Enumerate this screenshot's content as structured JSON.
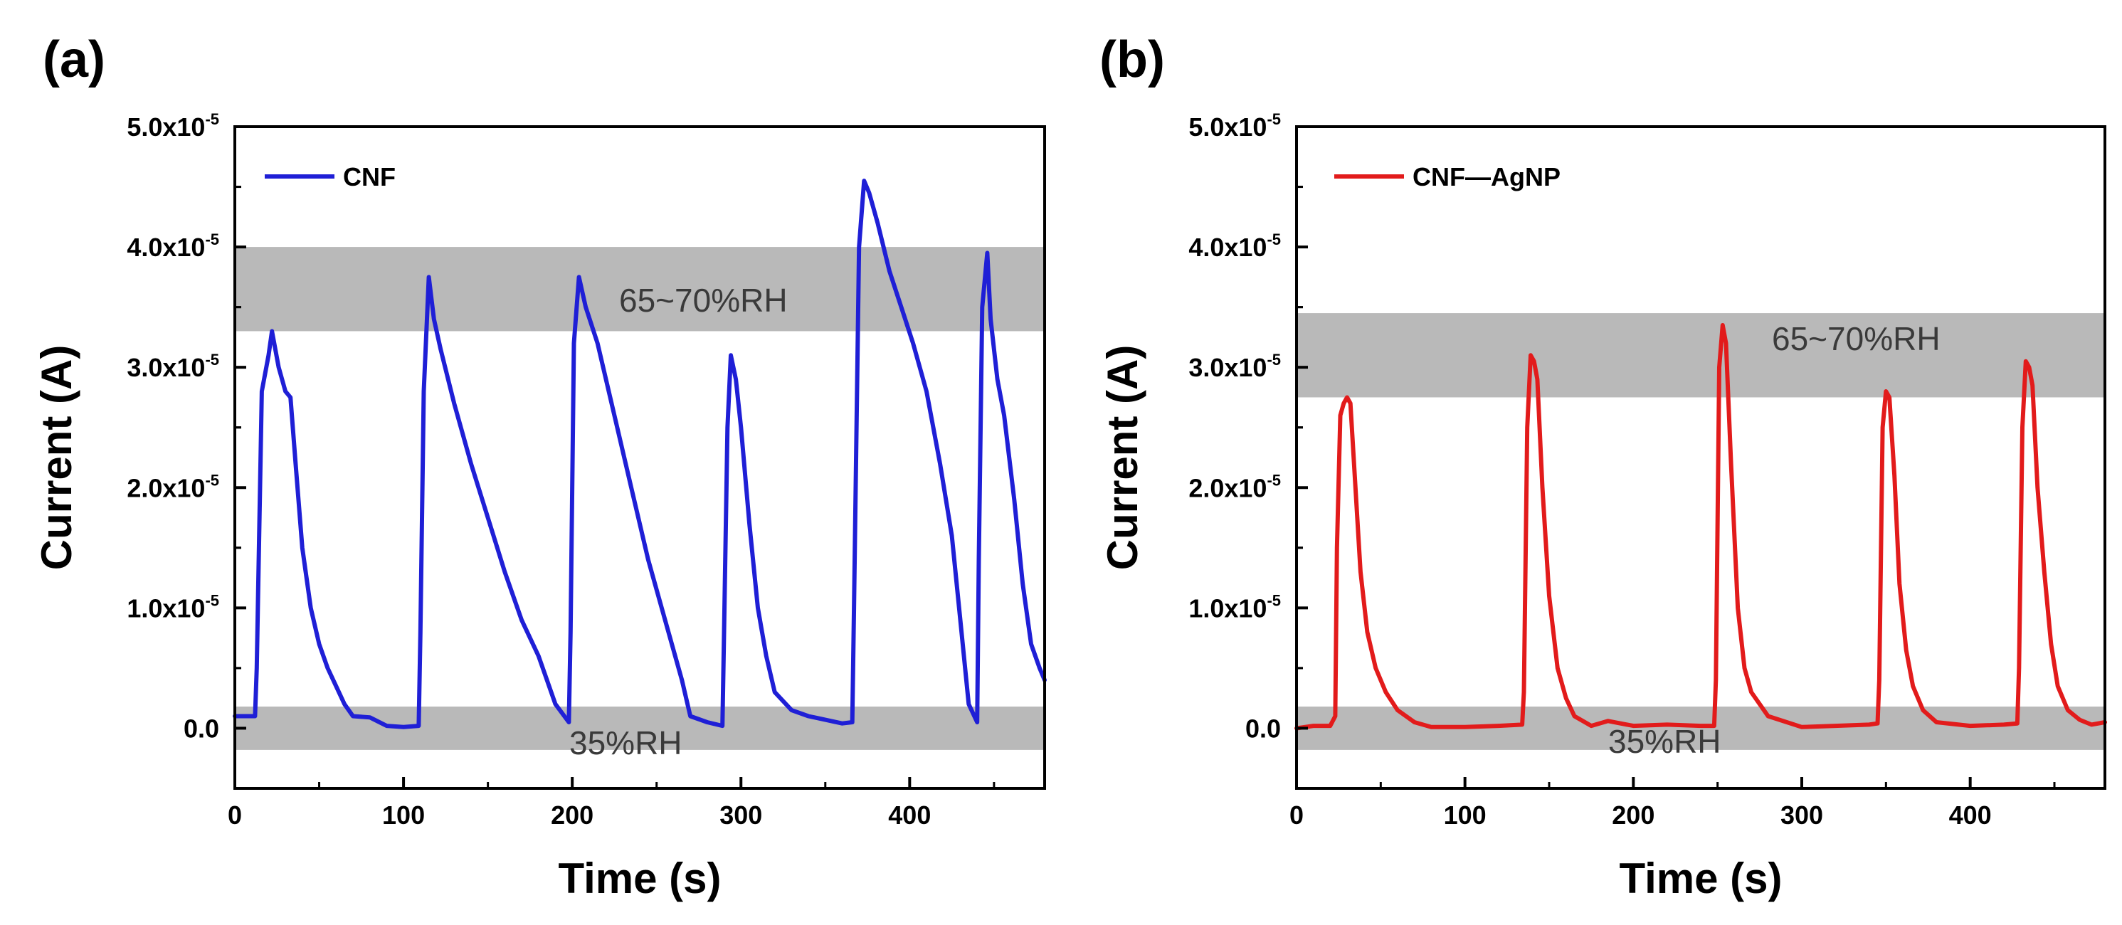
{
  "chart_data": [
    {
      "panel_label": "(a)",
      "type": "line",
      "xlabel": "Time (s)",
      "ylabel": "Current (A)",
      "xlim": [
        0,
        480
      ],
      "ylim": [
        -5e-06,
        5e-05
      ],
      "xticks": [
        0,
        100,
        200,
        300,
        400
      ],
      "xtick_labels": [
        "0",
        "100",
        "200",
        "300",
        "400"
      ],
      "yticks": [
        0,
        1e-05,
        2e-05,
        3e-05,
        4e-05,
        5e-05
      ],
      "ytick_labels": [
        {
          "base": "0.0",
          "exp": ""
        },
        {
          "base": "1.0x10",
          "exp": "-5"
        },
        {
          "base": "2.0x10",
          "exp": "-5"
        },
        {
          "base": "3.0x10",
          "exp": "-5"
        },
        {
          "base": "4.0x10",
          "exp": "-5"
        },
        {
          "base": "5.0x10",
          "exp": "-5"
        }
      ],
      "bands": [
        {
          "label": "65~70%RH",
          "y0": 3.3e-05,
          "y1": 4e-05
        },
        {
          "label": "35%RH",
          "y0": -1.8e-06,
          "y1": 1.8e-06
        }
      ],
      "legend": "top-left",
      "series": [
        {
          "name": "CNF",
          "color": "#1f1fd6",
          "x": [
            0,
            12,
            13,
            16,
            20,
            22,
            26,
            30,
            33,
            36,
            40,
            45,
            50,
            55,
            60,
            65,
            70,
            80,
            90,
            100,
            109,
            110,
            112,
            115,
            118,
            122,
            130,
            140,
            150,
            160,
            170,
            180,
            190,
            198,
            199,
            201,
            204,
            208,
            215,
            225,
            235,
            245,
            255,
            265,
            270,
            280,
            289,
            290,
            292,
            294,
            297,
            300,
            305,
            310,
            315,
            320,
            330,
            340,
            350,
            360,
            366,
            367,
            370,
            373,
            376,
            381,
            388,
            395,
            402,
            410,
            418,
            425,
            430,
            435,
            440,
            441,
            443,
            446,
            448,
            452,
            456,
            462,
            467,
            472,
            477,
            480
          ],
          "values": [
            1e-06,
            1e-06,
            5e-06,
            2.8e-05,
            3.1e-05,
            3.3e-05,
            3e-05,
            2.8e-05,
            2.75e-05,
            2.2e-05,
            1.5e-05,
            1e-05,
            7e-06,
            5e-06,
            3.5e-06,
            2e-06,
            1e-06,
            9e-07,
            2e-07,
            1e-07,
            2e-07,
            8e-06,
            2.8e-05,
            3.75e-05,
            3.4e-05,
            3.15e-05,
            2.7e-05,
            2.2e-05,
            1.75e-05,
            1.3e-05,
            9e-06,
            6e-06,
            2e-06,
            5e-07,
            8e-06,
            3.2e-05,
            3.75e-05,
            3.5e-05,
            3.2e-05,
            2.6e-05,
            2e-05,
            1.4e-05,
            9e-06,
            4e-06,
            1e-06,
            5e-07,
            2e-07,
            8e-06,
            2.5e-05,
            3.1e-05,
            2.9e-05,
            2.5e-05,
            1.7e-05,
            1e-05,
            6e-06,
            3e-06,
            1.5e-06,
            1e-06,
            7e-07,
            4e-07,
            5e-07,
            1e-05,
            4e-05,
            4.55e-05,
            4.45e-05,
            4.2e-05,
            3.8e-05,
            3.5e-05,
            3.2e-05,
            2.8e-05,
            2.2e-05,
            1.6e-05,
            9e-06,
            2e-06,
            5e-07,
            1.4e-05,
            3.5e-05,
            3.95e-05,
            3.4e-05,
            2.9e-05,
            2.6e-05,
            1.9e-05,
            1.2e-05,
            7e-06,
            5e-06,
            4e-06
          ]
        }
      ]
    },
    {
      "panel_label": "(b)",
      "type": "line",
      "xlabel": "Time (s)",
      "ylabel": "Current (A)",
      "xlim": [
        0,
        480
      ],
      "ylim": [
        -5e-06,
        5e-05
      ],
      "xticks": [
        0,
        100,
        200,
        300,
        400
      ],
      "xtick_labels": [
        "0",
        "100",
        "200",
        "300",
        "400"
      ],
      "yticks": [
        0,
        1e-05,
        2e-05,
        3e-05,
        4e-05,
        5e-05
      ],
      "ytick_labels": [
        {
          "base": "0.0",
          "exp": ""
        },
        {
          "base": "1.0x10",
          "exp": "-5"
        },
        {
          "base": "2.0x10",
          "exp": "-5"
        },
        {
          "base": "3.0x10",
          "exp": "-5"
        },
        {
          "base": "4.0x10",
          "exp": "-5"
        },
        {
          "base": "5.0x10",
          "exp": "-5"
        }
      ],
      "bands": [
        {
          "label": "65~70%RH",
          "y0": 2.75e-05,
          "y1": 3.45e-05
        },
        {
          "label": "35%RH",
          "y0": -1.8e-06,
          "y1": 1.8e-06
        }
      ],
      "legend": "top-left",
      "series": [
        {
          "name": "CNF—AgNP",
          "color": "#e21b1b",
          "x": [
            0,
            10,
            20,
            23,
            24,
            26,
            28,
            30,
            32,
            35,
            38,
            42,
            47,
            53,
            60,
            70,
            80,
            100,
            120,
            134,
            135,
            137,
            139,
            141,
            143,
            146,
            150,
            155,
            160,
            165,
            175,
            185,
            200,
            220,
            240,
            248,
            249,
            251,
            253,
            255,
            258,
            262,
            266,
            270,
            280,
            300,
            320,
            340,
            345,
            346,
            348,
            350,
            352,
            355,
            358,
            362,
            366,
            372,
            380,
            400,
            420,
            428,
            429,
            431,
            433,
            435,
            437,
            440,
            444,
            448,
            452,
            458,
            465,
            472,
            480
          ],
          "values": [
            0,
            2e-07,
            2e-07,
            1e-06,
            1.5e-05,
            2.6e-05,
            2.7e-05,
            2.75e-05,
            2.7e-05,
            2e-05,
            1.3e-05,
            8e-06,
            5e-06,
            3e-06,
            1.5e-06,
            5e-07,
            1e-07,
            1e-07,
            2e-07,
            3e-07,
            3e-06,
            2.5e-05,
            3.1e-05,
            3.05e-05,
            2.9e-05,
            2e-05,
            1.1e-05,
            5e-06,
            2.5e-06,
            1e-06,
            2e-07,
            6e-07,
            2e-07,
            3e-07,
            2e-07,
            2e-07,
            4e-06,
            3e-05,
            3.35e-05,
            3.2e-05,
            2.2e-05,
            1e-05,
            5e-06,
            3e-06,
            1e-06,
            1e-07,
            2e-07,
            3e-07,
            4e-07,
            4e-06,
            2.5e-05,
            2.8e-05,
            2.75e-05,
            2.1e-05,
            1.2e-05,
            6.5e-06,
            3.5e-06,
            1.5e-06,
            5e-07,
            2e-07,
            3e-07,
            4e-07,
            5e-06,
            2.5e-05,
            3.05e-05,
            3e-05,
            2.85e-05,
            2e-05,
            1.3e-05,
            7e-06,
            3.5e-06,
            1.5e-06,
            7e-07,
            3e-07,
            5e-07
          ]
        }
      ]
    }
  ]
}
